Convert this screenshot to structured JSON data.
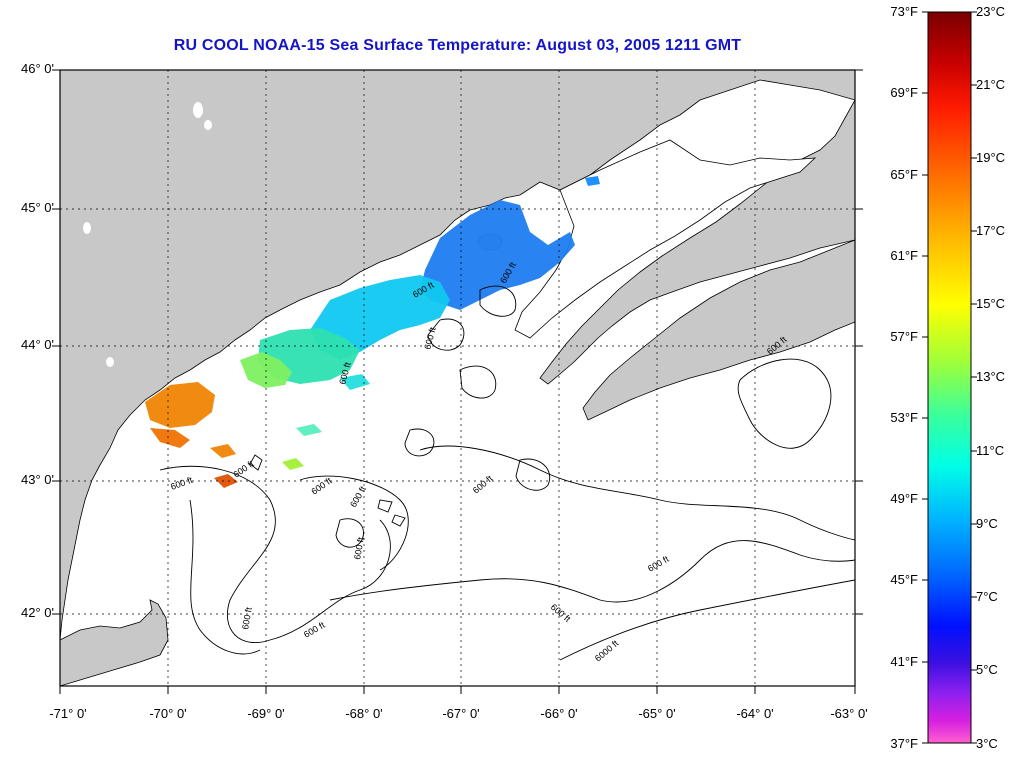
{
  "title": "RU COOL  NOAA-15  Sea Surface Temperature:  August 03, 2005 1211 GMT",
  "axes": {
    "lat_labels": [
      "46° 0'",
      "45° 0'",
      "44° 0'",
      "43° 0'",
      "42° 0'"
    ],
    "lon_labels": [
      "-71° 0'",
      "-70° 0'",
      "-69° 0'",
      "-68° 0'",
      "-67° 0'",
      "-66° 0'",
      "-65° 0'",
      "-64° 0'",
      "-63° 0'"
    ]
  },
  "colorbar": {
    "fahrenheit": [
      "73°F",
      "69°F",
      "65°F",
      "61°F",
      "57°F",
      "53°F",
      "49°F",
      "45°F",
      "41°F",
      "37°F"
    ],
    "celsius": [
      "23°C",
      "21°C",
      "19°C",
      "17°C",
      "15°C",
      "13°C",
      "11°C",
      "9°C",
      "7°C",
      "5°C",
      "3°C"
    ]
  },
  "contour_labels": [
    "600 ft",
    "600 ft",
    "600 ft",
    "600 ft",
    "600 ft",
    "600 ft",
    "600 ft",
    "600 ft",
    "600 ft",
    "600 ft",
    "600 ft",
    "600 ft",
    "600 ft",
    "600 ft",
    "600 ft",
    "6000 ft"
  ],
  "colors": {
    "title": "#1515c8",
    "land": "#c8c8c8",
    "water": "#ffffff"
  }
}
